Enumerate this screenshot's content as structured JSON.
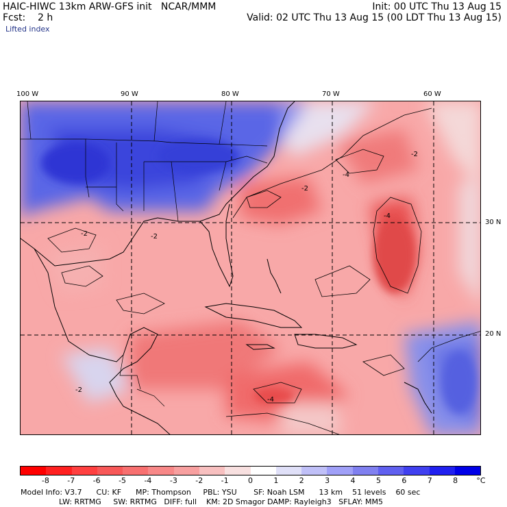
{
  "header": {
    "title": "HAIC-HIWC 13km ARW-GFS init   NCAR/MMM",
    "init": "Init: 00 UTC Thu 13 Aug 15",
    "fcst": "Fcst:    2 h",
    "valid": "Valid: 02 UTC Thu 13 Aug 15 (00 LDT Thu 13 Aug 15)",
    "field": "Lifted index"
  },
  "map": {
    "lon_labels": [
      "100 W",
      "90 W",
      "80 W",
      "70 W",
      "60 W"
    ],
    "lat_labels": [
      "30 N",
      "20 N"
    ],
    "contour_labels": [
      "-2",
      "-4"
    ]
  },
  "colorbar": {
    "ticks": [
      "-8",
      "-7",
      "-6",
      "-5",
      "-4",
      "-3",
      "-2",
      "-1",
      "0",
      "1",
      "2",
      "3",
      "4",
      "5",
      "6",
      "7",
      "8"
    ],
    "unit": "°C",
    "colors": [
      "#ff0000",
      "#ff2020",
      "#ff4040",
      "#f85858",
      "#f87070",
      "#f88888",
      "#f8a0a0",
      "#f8c0c0",
      "#f8e0e0",
      "#ffffff",
      "#e0e0f8",
      "#c0c0f8",
      "#a0a0f8",
      "#8080f0",
      "#6060f0",
      "#4040f0",
      "#2020f0",
      "#0000e8"
    ]
  },
  "footer": {
    "line1": "Model Info: V3.7      CU: KF      MP: Thompson     PBL: YSU       SF: Noah LSM      13 km    51 levels    60 sec",
    "line2": "LW: RRTMG     SW: RRTMG   DIFF: full    KM: 2D Smagor DAMP: Rayleigh3   SFLAY: MM5"
  }
}
